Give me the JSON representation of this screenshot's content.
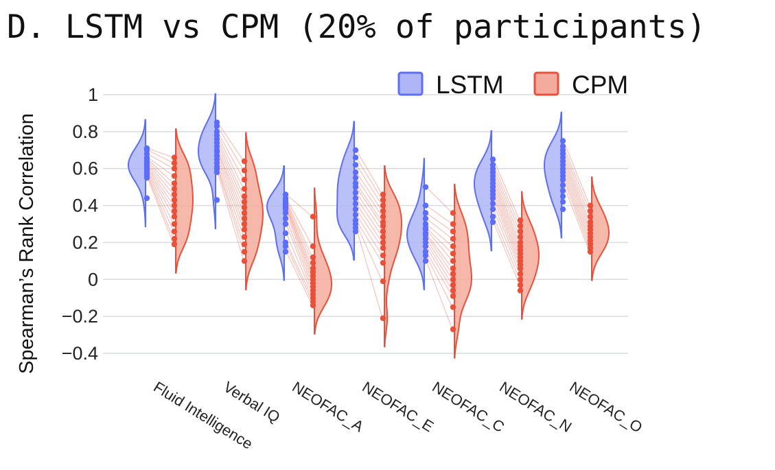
{
  "chart_data": {
    "type": "violin",
    "title": "D. LSTM vs CPM (20% of participants)",
    "ylabel": "Spearman’s Rank Correlation",
    "xlabel": "",
    "ylim": [
      -0.45,
      1.05
    ],
    "yticks": [
      1,
      0.8,
      0.6,
      0.4,
      0.2,
      0,
      -0.2,
      -0.4
    ],
    "ytick_labels": [
      "1",
      "0.8",
      "0.6",
      "0.4",
      "0.2",
      "0",
      "−0.2",
      "−0.4"
    ],
    "grid": true,
    "legend_position": "top-right",
    "categories": [
      "Fluid Intelligence",
      "Verbal IQ",
      "NEOFAC_A",
      "NEOFAC_E",
      "NEOFAC_C",
      "NEOFAC_N",
      "NEOFAC_O"
    ],
    "series": [
      {
        "name": "LSTM",
        "color": "#5b6ef5",
        "points": [
          [
            0.71,
            0.7,
            0.68,
            0.66,
            0.65,
            0.64,
            0.63,
            0.62,
            0.61,
            0.6,
            0.59,
            0.58,
            0.57,
            0.56,
            0.55,
            0.44
          ],
          [
            0.85,
            0.83,
            0.8,
            0.78,
            0.76,
            0.74,
            0.72,
            0.7,
            0.69,
            0.67,
            0.65,
            0.63,
            0.61,
            0.6,
            0.58,
            0.43
          ],
          [
            0.46,
            0.44,
            0.43,
            0.42,
            0.41,
            0.4,
            0.39,
            0.38,
            0.36,
            0.33,
            0.3,
            0.25,
            0.2,
            0.18,
            0.15
          ],
          [
            0.7,
            0.66,
            0.62,
            0.58,
            0.55,
            0.52,
            0.5,
            0.47,
            0.44,
            0.41,
            0.38,
            0.35,
            0.32,
            0.3,
            0.28,
            0.26
          ],
          [
            0.5,
            0.4,
            0.36,
            0.33,
            0.3,
            0.28,
            0.27,
            0.25,
            0.24,
            0.22,
            0.2,
            0.18,
            0.15,
            0.13,
            0.1
          ],
          [
            0.65,
            0.62,
            0.6,
            0.58,
            0.56,
            0.54,
            0.52,
            0.5,
            0.48,
            0.46,
            0.44,
            0.41,
            0.38,
            0.34,
            0.31
          ],
          [
            0.75,
            0.72,
            0.7,
            0.68,
            0.66,
            0.64,
            0.62,
            0.6,
            0.58,
            0.56,
            0.54,
            0.51,
            0.48,
            0.45,
            0.42,
            0.38
          ]
        ]
      },
      {
        "name": "CPM",
        "color": "#e8503a",
        "points": [
          [
            0.66,
            0.63,
            0.6,
            0.56,
            0.52,
            0.49,
            0.46,
            0.43,
            0.4,
            0.37,
            0.34,
            0.3,
            0.26,
            0.22,
            0.19
          ],
          [
            0.64,
            0.59,
            0.54,
            0.49,
            0.45,
            0.42,
            0.39,
            0.36,
            0.33,
            0.3,
            0.27,
            0.23,
            0.19,
            0.15,
            0.1
          ],
          [
            0.34,
            0.18,
            0.12,
            0.09,
            0.06,
            0.04,
            0.02,
            0.0,
            -0.02,
            -0.04,
            -0.06,
            -0.08,
            -0.1,
            -0.12,
            -0.14
          ],
          [
            0.46,
            0.43,
            0.4,
            0.37,
            0.34,
            0.31,
            0.29,
            0.26,
            0.23,
            0.2,
            0.17,
            0.13,
            0.09,
            -0.01,
            -0.21
          ],
          [
            0.36,
            0.3,
            0.26,
            0.22,
            0.18,
            0.14,
            0.1,
            0.06,
            0.03,
            0.0,
            -0.03,
            -0.06,
            -0.09,
            -0.15,
            -0.27
          ],
          [
            0.32,
            0.29,
            0.26,
            0.23,
            0.2,
            0.18,
            0.16,
            0.14,
            0.12,
            0.1,
            0.08,
            0.06,
            0.03,
            0.0,
            -0.03,
            -0.06
          ],
          [
            0.4,
            0.37,
            0.34,
            0.31,
            0.29,
            0.27,
            0.25,
            0.23,
            0.21,
            0.19,
            0.17,
            0.15
          ]
        ]
      }
    ]
  },
  "colors": {
    "lstm_fill": "#aeb6f7",
    "lstm_line": "#5b6ef5",
    "cpm_fill": "#f5ab9c",
    "cpm_line": "#e8503a",
    "grid": "#d9dce6"
  }
}
